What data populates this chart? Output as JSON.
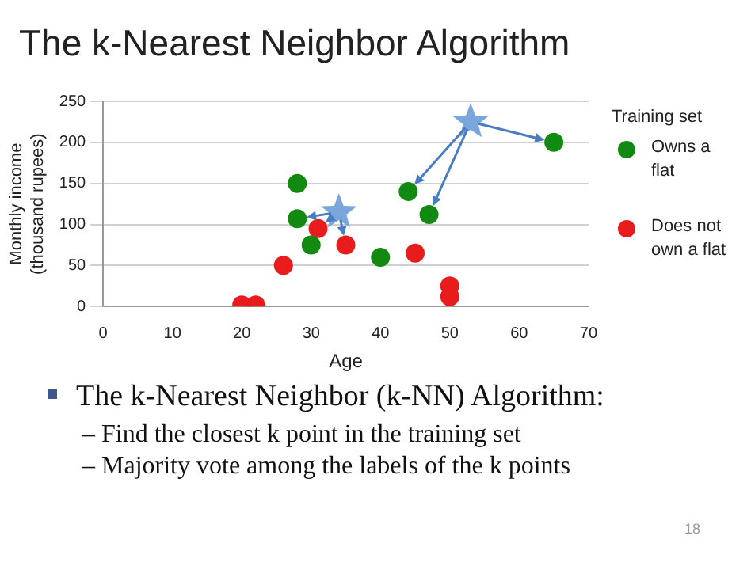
{
  "chart_data": {
    "type": "scatter",
    "title": "The k-Nearest Neighbor Algorithm",
    "xlabel": "Age",
    "ylabel": "Monthly income\n(thousand rupees)",
    "legend_title": "Training set",
    "legend": "right",
    "grid": "y",
    "marker": "circle",
    "xlim": [
      0,
      70
    ],
    "xticks": [
      0,
      10,
      20,
      30,
      40,
      50,
      60,
      70
    ],
    "ylim": [
      0,
      250
    ],
    "yticks": [
      0,
      50,
      100,
      150,
      200,
      250
    ],
    "series": [
      {
        "name": "Owns a flat",
        "color": "#128a12",
        "x": [
          28,
          28,
          30,
          40,
          44,
          47,
          65
        ],
        "values": [
          150,
          107,
          75,
          60,
          140,
          112,
          200
        ]
      },
      {
        "name": "Does not own a flat",
        "color": "#e81c1c",
        "x": [
          20,
          22,
          26,
          31,
          35,
          45,
          50,
          50
        ],
        "values": [
          2,
          2,
          50,
          95,
          75,
          65,
          25,
          12
        ]
      },
      {
        "color": "#7aa6dc",
        "marker": "star",
        "x": [
          34,
          53
        ],
        "values": [
          115,
          225
        ]
      }
    ],
    "annotations": [
      "The k-Nearest Neighbor (k-NN) Algorithm:",
      "– Find the closest k point in the training set",
      "– Majority vote among the labels of the k points",
      "18"
    ]
  }
}
